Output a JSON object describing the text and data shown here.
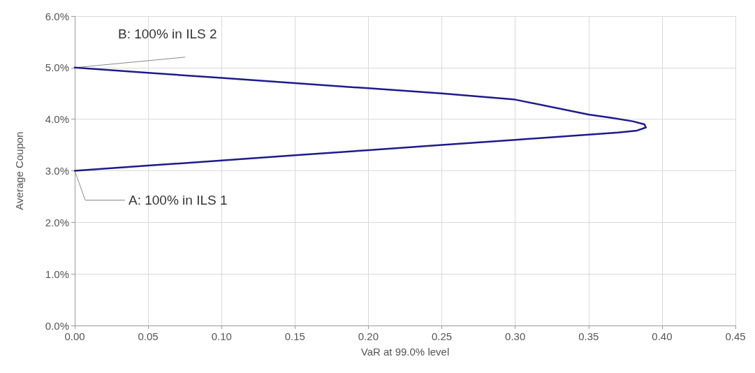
{
  "chart_data": {
    "type": "line",
    "xlabel": "VaR at 99.0% level",
    "ylabel": "Average Coupon",
    "series": [
      {
        "color": "#1f1a8c",
        "x": [
          0,
          0.05,
          0.1,
          0.15,
          0.2,
          0.25,
          0.3,
          0.35,
          0.37,
          0.383,
          0.389,
          0.388,
          0.38,
          0.365,
          0.35,
          0.3,
          0.25,
          0.2,
          0.15,
          0.1,
          0.05,
          0
        ],
        "values": [
          3.0,
          3.1,
          3.2,
          3.3,
          3.4,
          3.5,
          3.6,
          3.7,
          3.74,
          3.78,
          3.84,
          3.9,
          3.96,
          4.03,
          4.09,
          4.38,
          4.5,
          4.6,
          4.7,
          4.8,
          4.9,
          5.0
        ]
      }
    ],
    "xlim": [
      0,
      0.45
    ],
    "xticks": [
      {
        "value": 0,
        "label": "0.00"
      },
      {
        "value": 0.05,
        "label": "0.05"
      },
      {
        "value": 0.1,
        "label": "0.10"
      },
      {
        "value": 0.15,
        "label": "0.15"
      },
      {
        "value": 0.2,
        "label": "0.20"
      },
      {
        "value": 0.25,
        "label": "0.25"
      },
      {
        "value": 0.3,
        "label": "0.30"
      },
      {
        "value": 0.35,
        "label": "0.35"
      },
      {
        "value": 0.4,
        "label": "0.40"
      },
      {
        "value": 0.45,
        "label": "0.45"
      }
    ],
    "ylim": [
      0,
      6
    ],
    "yticks": [
      {
        "value": 0,
        "label": "0.0%"
      },
      {
        "value": 1,
        "label": "1.0%"
      },
      {
        "value": 2,
        "label": "2.0%"
      },
      {
        "value": 3,
        "label": "3.0%"
      },
      {
        "value": 4,
        "label": "4.0%"
      },
      {
        "value": 5,
        "label": "5.0%"
      },
      {
        "value": 6,
        "label": "6.0%"
      }
    ],
    "annotations": [
      {
        "text": "B: 100% in ILS 2",
        "x": 0,
        "y": 5.0
      },
      {
        "text": "A: 100% in ILS 1",
        "x": 0,
        "y": 3.0
      }
    ],
    "grid": true,
    "marker": "none",
    "line_style": "solid"
  }
}
